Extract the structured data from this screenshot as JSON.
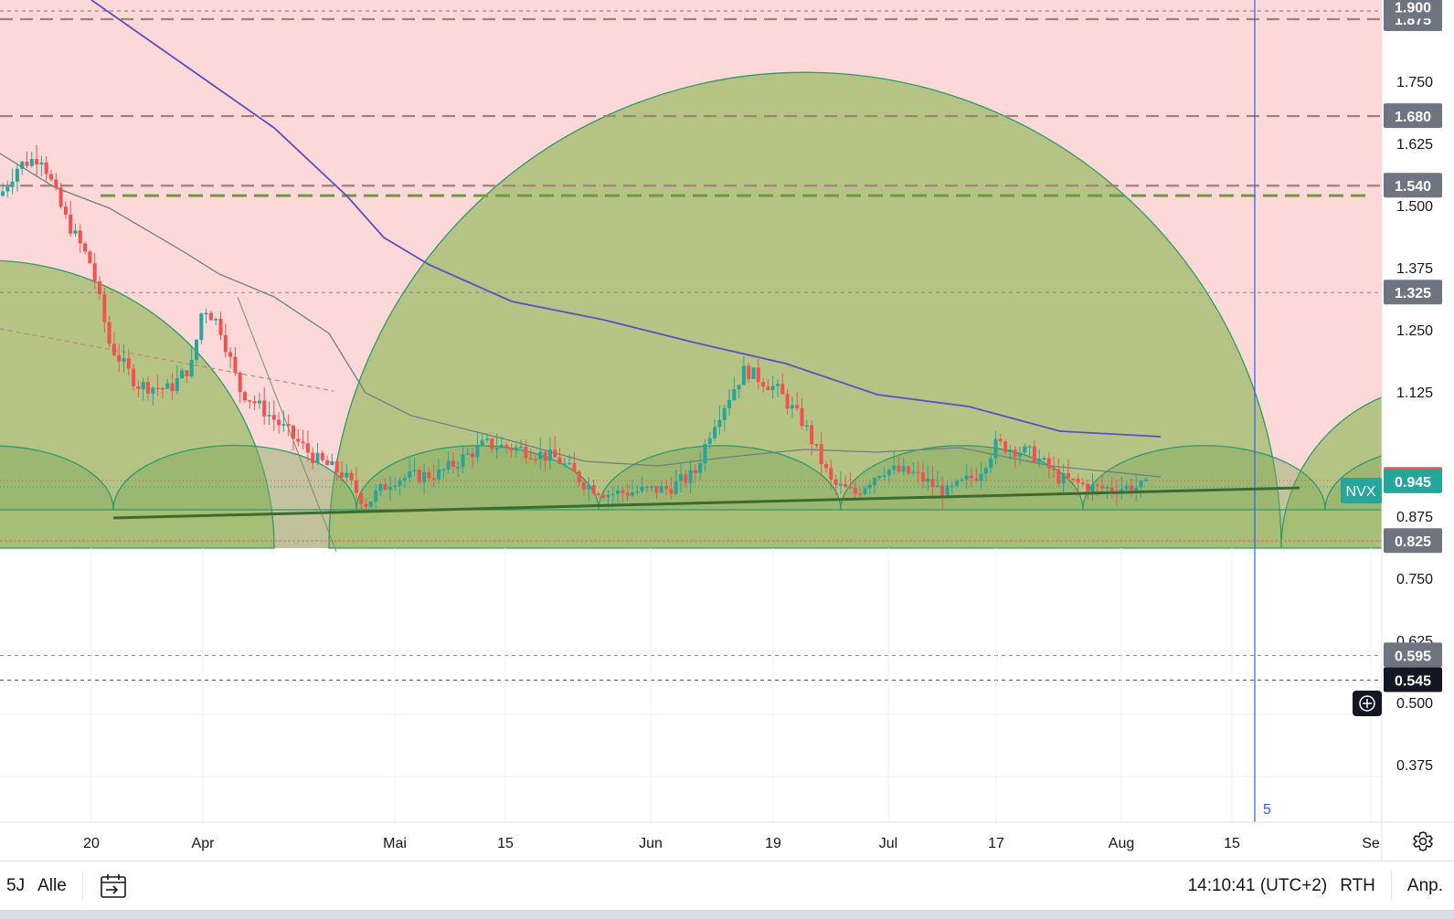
{
  "symbol": "NVX",
  "chart_data": {
    "type": "candlestick",
    "ylim": [
      0.28,
      1.92
    ],
    "price_axis_ticks": [
      "1.750",
      "1.625",
      "1.500",
      "1.375",
      "1.250",
      "1.125",
      "0.875",
      "0.750",
      "0.625",
      "0.500",
      "0.375"
    ],
    "time_axis_ticks": [
      "20",
      "Apr",
      "Mai",
      "15",
      "Jun",
      "19",
      "Jul",
      "17",
      "Aug",
      "15",
      "Se"
    ],
    "horizontal_levels": [
      {
        "label": "1.875",
        "kind": "dashed-brown"
      },
      {
        "label": "1.680",
        "kind": "dashed-brown"
      },
      {
        "label": "1.540",
        "kind": "dashed-brown"
      },
      {
        "label": "1.325",
        "kind": "dotted"
      },
      {
        "label": "0.825",
        "kind": "red-line"
      },
      {
        "label": "0.595",
        "kind": "dotted"
      },
      {
        "label": "0.545",
        "kind": "dotted-dark"
      }
    ],
    "last_price": "0.945",
    "high_badge": "0.950",
    "partial_top_label": "1.900",
    "vertical_marker_label": "5",
    "colors": {
      "up": "#26a69a",
      "down": "#ef5350",
      "resistance_zone": "#fdd8d8",
      "arcs": "#9cbc6a",
      "trendline": "#3c6b2e",
      "ma_long": "#5b4fc2",
      "ma_short": "#6f7f82",
      "marker_line": "#2962ff"
    },
    "candles_note": "daily candles decline from ~1.58 to ~0.91 and then range between ~0.91 and ~1.20"
  },
  "bottom_bar": {
    "range_5y": "5J",
    "range_all": "Alle",
    "time": "14:10:41 (UTC+2)",
    "session": "RTH",
    "adjust": "Anp."
  },
  "icons": {
    "date_range": "calendar-arrow-icon",
    "crosshair": "plus-circle-icon",
    "settings": "gear-icon"
  }
}
